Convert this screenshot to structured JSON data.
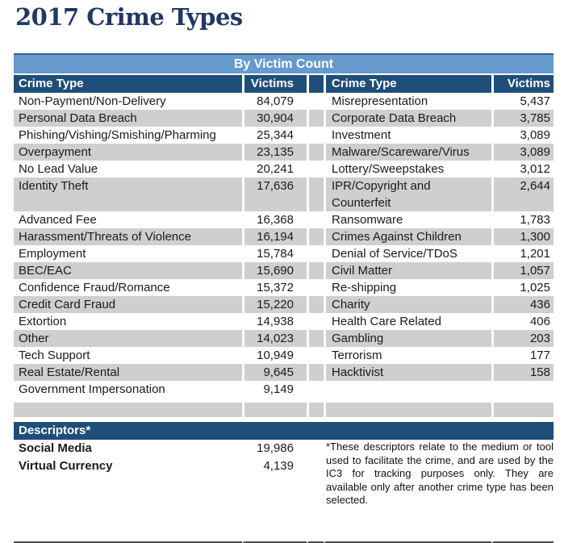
{
  "page_title": "2017 Crime Types",
  "table": {
    "band_title": "By Victim Count",
    "headers": {
      "crime_type_left": "Crime Type",
      "victims_left": "Victims",
      "crime_type_right": "Crime Type",
      "victims_right": "Victims"
    },
    "rows": [
      {
        "left": {
          "type": "Non-Payment/Non-Delivery",
          "victims": "84,079"
        },
        "right": {
          "type": "Misrepresentation",
          "victims": "5,437"
        }
      },
      {
        "left": {
          "type": "Personal Data Breach",
          "victims": "30,904"
        },
        "right": {
          "type": "Corporate Data Breach",
          "victims": "3,785"
        }
      },
      {
        "left": {
          "type": "Phishing/Vishing/Smishing/Pharming",
          "victims": "25,344"
        },
        "right": {
          "type": "Investment",
          "victims": "3,089"
        }
      },
      {
        "left": {
          "type": "Overpayment",
          "victims": "23,135"
        },
        "right": {
          "type": "Malware/Scareware/Virus",
          "victims": "3,089"
        }
      },
      {
        "left": {
          "type": "No Lead Value",
          "victims": "20,241"
        },
        "right": {
          "type": "Lottery/Sweepstakes",
          "victims": "3,012"
        }
      },
      {
        "left": {
          "type": "Identity Theft",
          "victims": "17,636"
        },
        "right": {
          "type": "IPR/Copyright and\nCounterfeit",
          "victims": "2,644"
        }
      },
      {
        "left": {
          "type": "Advanced Fee",
          "victims": "16,368"
        },
        "right": {
          "type": "Ransomware",
          "victims": "1,783"
        }
      },
      {
        "left": {
          "type": "Harassment/Threats of Violence",
          "victims": "16,194"
        },
        "right": {
          "type": "Crimes Against Children",
          "victims": "1,300"
        }
      },
      {
        "left": {
          "type": "Employment",
          "victims": "15,784"
        },
        "right": {
          "type": "Denial of Service/TDoS",
          "victims": "1,201"
        }
      },
      {
        "left": {
          "type": "BEC/EAC",
          "victims": "15,690"
        },
        "right": {
          "type": "Civil Matter",
          "victims": "1,057"
        }
      },
      {
        "left": {
          "type": "Confidence Fraud/Romance",
          "victims": "15,372"
        },
        "right": {
          "type": "Re-shipping",
          "victims": "1,025"
        }
      },
      {
        "left": {
          "type": "Credit Card Fraud",
          "victims": "15,220"
        },
        "right": {
          "type": "Charity",
          "victims": "436"
        }
      },
      {
        "left": {
          "type": "Extortion",
          "victims": "14,938"
        },
        "right": {
          "type": "Health Care Related",
          "victims": "406"
        }
      },
      {
        "left": {
          "type": "Other",
          "victims": "14,023"
        },
        "right": {
          "type": "Gambling",
          "victims": "203"
        }
      },
      {
        "left": {
          "type": "Tech Support",
          "victims": "10,949"
        },
        "right": {
          "type": "Terrorism",
          "victims": "177"
        }
      },
      {
        "left": {
          "type": "Real Estate/Rental",
          "victims": "9,645"
        },
        "right": {
          "type": "Hacktivist",
          "victims": "158"
        }
      },
      {
        "left": {
          "type": "Government Impersonation",
          "victims": "9,149"
        },
        "right": {
          "type": "",
          "victims": ""
        }
      }
    ]
  },
  "descriptors": {
    "header": "Descriptors*",
    "rows": [
      {
        "label": "Social Media",
        "value": "19,986"
      },
      {
        "label": "Virtual Currency",
        "value": "4,139"
      }
    ],
    "footnote": "*These descriptors relate to the medium or tool used to facilitate the crime, and are used by the IC3 for tracking purposes only.  They are available only after another crime type has been selected."
  },
  "colors": {
    "title_navy": "#1F3864",
    "band_blue": "#6699CC",
    "header_dark_blue": "#1F4E79",
    "alt_row_gray": "#CFCFCF",
    "bottom_rule": "#4a4a4a"
  }
}
